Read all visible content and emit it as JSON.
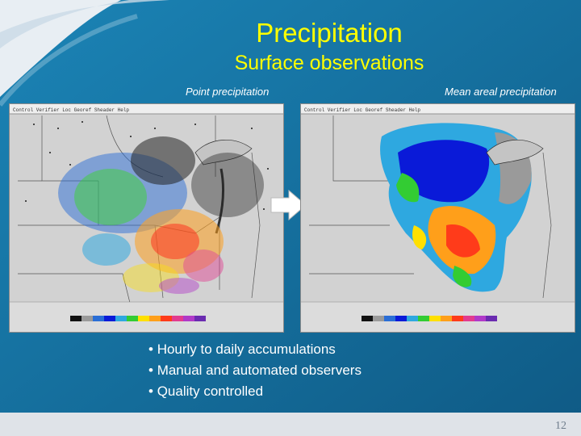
{
  "slide": {
    "title": "Precipitation",
    "subtitle": "Surface observations",
    "left_caption": "Point precipitation",
    "right_caption": "Mean areal precipitation",
    "bullets": [
      "Hourly to daily accumulations",
      "Manual and automated observers",
      "Quality controlled"
    ],
    "page_number": "12"
  },
  "colors": {
    "background": "#176b99",
    "title": "#ffff00",
    "legend_scale": [
      "#111111",
      "#9a9a9a",
      "#2a6ed6",
      "#0a1ad8",
      "#2ea8e0",
      "#33cc33",
      "#ffe000",
      "#ff9f1a",
      "#ff3b1a",
      "#e23b8f",
      "#b039c8",
      "#6a2bb0"
    ]
  },
  "icons": {
    "arrow": "right-arrow-icon",
    "swoosh": "decorative-swoosh"
  }
}
